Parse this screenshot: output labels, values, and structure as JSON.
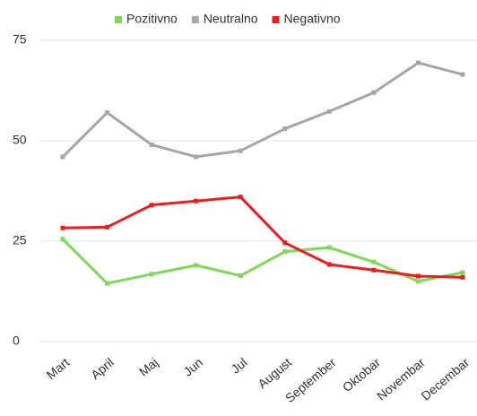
{
  "chart_data": {
    "type": "line",
    "categories": [
      "Mart",
      "April",
      "Maj",
      "Jun",
      "Jul",
      "August",
      "September",
      "Oktobar",
      "Novembar",
      "Decembar"
    ],
    "series": [
      {
        "name": "Pozitivno",
        "color": "#7ed957",
        "values": [
          25.5,
          14.5,
          16.8,
          19,
          16.4,
          22.4,
          23.4,
          19.8,
          15,
          17.2
        ]
      },
      {
        "name": "Neutralno",
        "color": "#a6a6a6",
        "values": [
          46,
          57,
          49,
          46,
          47.5,
          53,
          57.3,
          62,
          69.4,
          66.5
        ]
      },
      {
        "name": "Negativno",
        "color": "#ee1c1c",
        "values": [
          28.3,
          28.5,
          34,
          35,
          36,
          24.6,
          19.2,
          17.8,
          16.3,
          16
        ]
      }
    ],
    "ylim": [
      0,
      75
    ],
    "yticks": [
      0,
      25,
      50,
      75
    ],
    "grid": true,
    "legend": "top"
  }
}
